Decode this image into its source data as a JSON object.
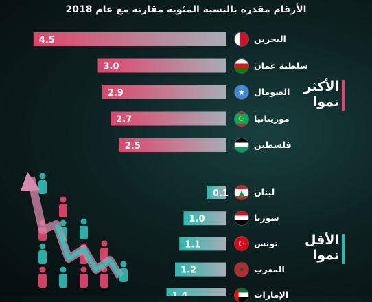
{
  "subtitle": "الأرقام مقدرة بالنسبة المئوية مقارنة مع عام 2018",
  "colors": {
    "top": "#e0446a",
    "bottom": "#2cb8ae"
  },
  "groups": {
    "top": {
      "line1": "الأكثر",
      "line2": "نموا"
    },
    "bottom": {
      "line1": "الأقل",
      "line2": "نموا"
    }
  },
  "icons": {
    "growth": "population-growth-arrow-icon"
  },
  "chart_data": {
    "type": "bar",
    "orientation": "horizontal",
    "title": "",
    "subtitle": "الأرقام مقدرة بالنسبة المئوية مقارنة مع عام 2018",
    "series": [
      {
        "name": "الأكثر نموا",
        "categories": [
          "البحرين",
          "سلطنة عمان",
          "الصومال",
          "موريتانيا",
          "فلسطين"
        ],
        "values": [
          4.5,
          3.0,
          2.9,
          2.7,
          2.5
        ],
        "labels": [
          "4.5",
          "3.0",
          "2.9",
          "2.7",
          "2.5"
        ],
        "flags": [
          "bahrain-flag-icon",
          "oman-flag-icon",
          "somalia-flag-icon",
          "mauritania-flag-icon",
          "palestine-flag-icon"
        ]
      },
      {
        "name": "الأقل نموا",
        "categories": [
          "لبنان",
          "سوريا",
          "تونس",
          "المغرب",
          "الإمارات"
        ],
        "values": [
          0.1,
          1.0,
          1.1,
          1.2,
          1.4
        ],
        "labels": [
          "0.1",
          "1.0",
          "1.1",
          "1.2",
          "1.4"
        ],
        "flags": [
          "lebanon-flag-icon",
          "syria-flag-icon",
          "tunisia-flag-icon",
          "morocco-flag-icon",
          "uae-flag-icon"
        ]
      }
    ]
  }
}
